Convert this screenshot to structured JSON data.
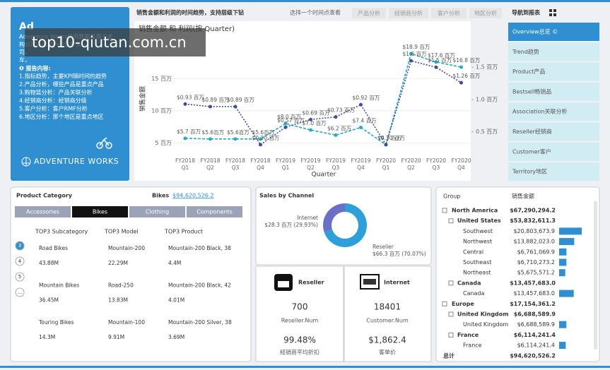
{
  "watermark": "top10-qiutan.com.cn",
  "intro": {
    "title": "Ad",
    "lines": [
      "Adventure Works示例数据库基于虚",
      "构公司，这是一个生产公",
      "司，",
      "车，"
    ],
    "report_heading": "❶ 报告内容:",
    "items": [
      "1.指标趋势，主要KPI随时间的趋势",
      "2.产品分析，哪些产品是重点产品",
      "3.购物篮分析：产品关联分析",
      "4.经销商分析：经销商分级",
      "5.客户分析：客户RMF分析",
      "6.地区分析：那个地区是重点地区"
    ],
    "brand": "ADVENTURE WORKS"
  },
  "header": {
    "title": "销售金额和利润的时间趋势，支持层级下钻",
    "hint": "选择一个时间点查看",
    "buttons": [
      "产品分析",
      "经销商分析",
      "客户分析",
      "地区分析"
    ]
  },
  "nav": {
    "title": "导航到报表",
    "items": [
      "Overview总览 ©",
      "Trend趋势",
      "Product产品",
      "Bestsell畅销品",
      "Association关联分析",
      "Reseller经销商",
      "Customer客户",
      "Territory地区"
    ]
  },
  "chart_data": [
    {
      "type": "line",
      "title": "销售金额 和 利润(按 Quarter)",
      "y_label": "销售金额",
      "x_label": "Quarter",
      "categories": [
        "FY2018 Q1",
        "FY2018 Q2",
        "FY2018 Q3",
        "FY2018 Q4",
        "FY2019 Q1",
        "FY2019 Q2",
        "FY2019 Q3",
        "FY2019 Q4",
        "FY2020 Q1",
        "FY2020 Q2",
        "FY2020 Q3",
        "FY2020 Q4"
      ],
      "ylim": [
        2.5,
        20
      ],
      "yticks": [
        {
          "value": 5,
          "label": "5 百万"
        },
        {
          "value": 10,
          "label": "10 百万"
        },
        {
          "value": 15,
          "label": "15 百万"
        }
      ],
      "y2lim": [
        0.08,
        1.82
      ],
      "y2ticks": [
        {
          "value": 0.5,
          "label": "0.5 百万"
        },
        {
          "value": 1.0,
          "label": "1.0 百万"
        },
        {
          "value": 1.5,
          "label": "1.5 百万"
        }
      ],
      "series": [
        {
          "name": "销售金额",
          "color": "#2ba9c6",
          "values": [
            5.7,
            5.6,
            5.6,
            5.6,
            8.0,
            7.0,
            6.2,
            7.4,
            4.7,
            18.9,
            17.6,
            16.8
          ],
          "value_labels": [
            "$5.7 百万",
            "$5.6百万",
            "$5.6百万",
            "$5.6百万",
            "$8.0 百万",
            "$7.0 百万",
            "$6.2 百万",
            "$7.4 百万",
            "$4.7 百万",
            "$18.9 百万",
            "$17.6 百万",
            "$16.8 百万"
          ]
        },
        {
          "name": "利润",
          "color": "#404c9e",
          "axis": "y2",
          "values": [
            0.93,
            0.89,
            0.89,
            0.3,
            0.57,
            0.69,
            0.73,
            0.92,
            0.3,
            1.6,
            1.5,
            1.26
          ],
          "value_labels": [
            "$0.93 百万",
            "$0.89 百万",
            "$0.89 百万",
            "$0.30 百万",
            "$0.57 百万",
            "$0.69 百万",
            "$0.73 百万",
            "$0.92 百万",
            "$0.30 百万",
            "$1.6 百万",
            "$1.5 百万",
            "$1.26 百万"
          ]
        }
      ]
    },
    {
      "type": "pie",
      "title": "Sales by Channel",
      "categories": [
        "Internet",
        "Reseller"
      ],
      "values": [
        28.3,
        66.3
      ],
      "value_labels": [
        "$28.3 百万 (29.93%)",
        "$66.3 百万 (70.07%)"
      ],
      "colors": [
        "#6b6fc6",
        "#2e9fd8"
      ]
    }
  ],
  "product_category": {
    "title": "Product Category",
    "selected": "Bikes",
    "selected_value": "$94,620,526.2",
    "tabs": [
      "Accessories",
      "Bikes",
      "Clothing",
      "Components"
    ],
    "headers": [
      "TOP3 Subcategory",
      "TOP3 Model",
      "TOP3 Product"
    ],
    "pages": [
      "3",
      "4",
      "5",
      "..."
    ],
    "rows": [
      [
        [
          "Road Bikes",
          "43.88M"
        ],
        [
          "Mountain-200",
          "22.29M"
        ],
        [
          "Mountain-200 Black, 38",
          "4.4M"
        ]
      ],
      [
        [
          "Mountain Bikes",
          "36.45M"
        ],
        [
          "Road-250",
          "13.83M"
        ],
        [
          "Mountain-200 Black, 42",
          "4.01M"
        ]
      ],
      [
        [
          "Touring Bikes",
          "14.3M"
        ],
        [
          "Mountain-100",
          "9.91M"
        ],
        [
          "Mountain-200 Silver, 38",
          "3.69M"
        ]
      ]
    ]
  },
  "channel_cards": [
    {
      "title": "Reseller",
      "metric1": "700",
      "label1": "Reseller.Num",
      "metric2": "99.48%",
      "label2": "经销商平均折扣"
    },
    {
      "title": "Internet",
      "metric1": "18401",
      "label1": "Customer.Num",
      "metric2": "$1,862.4",
      "label2": "客单价"
    }
  ],
  "group_table": {
    "headers": [
      "Group",
      "销售金额"
    ],
    "rows": [
      {
        "name": "North America",
        "level": 0,
        "value": 67290294.2,
        "label": "$67,290,294.2"
      },
      {
        "name": "United States",
        "level": 1,
        "value": 53832611.3,
        "label": "$53,832,611.3"
      },
      {
        "name": "Southwest",
        "level": 2,
        "value": 20803673.9,
        "label": "$20,803,673.9"
      },
      {
        "name": "Northwest",
        "level": 2,
        "value": 13882023.0,
        "label": "$13,882,023.0"
      },
      {
        "name": "Central",
        "level": 2,
        "value": 6761069.9,
        "label": "$6,761,069.9"
      },
      {
        "name": "Southeast",
        "level": 2,
        "value": 6710273.2,
        "label": "$6,710,273.2"
      },
      {
        "name": "Northeast",
        "level": 2,
        "value": 5675571.2,
        "label": "$5,675,571.2"
      },
      {
        "name": "Canada",
        "level": 1,
        "value": 13457683.0,
        "label": "$13,457,683.0"
      },
      {
        "name": "Canada",
        "level": 2,
        "value": 13457683.0,
        "label": "$13,457,683.0"
      },
      {
        "name": "Europe",
        "level": 0,
        "value": 17154361.2,
        "label": "$17,154,361.2"
      },
      {
        "name": "United Kingdom",
        "level": 1,
        "value": 6688589.9,
        "label": "$6,688,589.9"
      },
      {
        "name": "United Kingdom",
        "level": 2,
        "value": 6688589.9,
        "label": "$6,688,589.9"
      },
      {
        "name": "France",
        "level": 1,
        "value": 6114241.4,
        "label": "$6,114,241.4"
      },
      {
        "name": "France",
        "level": 2,
        "value": 6114241.4,
        "label": "$6,114,241.4"
      }
    ],
    "total_name": "总计",
    "total_label": "$94,620,526.2"
  }
}
